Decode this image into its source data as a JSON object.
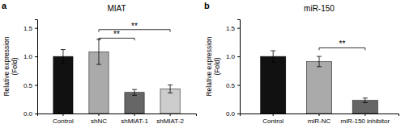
{
  "chart_data": [
    {
      "type": "bar",
      "title": "MIAT",
      "panel_label": "a",
      "categories": [
        "Control",
        "shNC",
        "shMIAT-1",
        "shMIAT-2"
      ],
      "values": [
        1.0,
        1.08,
        0.37,
        0.43
      ],
      "errors": [
        0.12,
        0.22,
        0.05,
        0.07
      ],
      "colors": [
        "#111111",
        "#aaaaaa",
        "#666666",
        "#cccccc"
      ],
      "ylabel": "Relative expression\n(Fold)",
      "ylim": [
        0,
        1.65
      ],
      "yticks": [
        {
          "value": 0,
          "label": "0.0"
        },
        0.5,
        {
          "value": 1,
          "label": "1.0"
        },
        1.5
      ],
      "annotations": [
        {
          "text": "**",
          "from": "shNC",
          "to": "shMIAT-1",
          "y": 1.32
        },
        {
          "text": "**",
          "from": "shNC",
          "to": "shMIAT-2",
          "y": 1.47
        }
      ]
    },
    {
      "type": "bar",
      "title": "miR-150",
      "panel_label": "b",
      "categories": [
        "Control",
        "miR-NC",
        "miR-150 inhibitor"
      ],
      "values": [
        1.0,
        0.91,
        0.23
      ],
      "errors": [
        0.1,
        0.09,
        0.04
      ],
      "colors": [
        "#111111",
        "#aaaaaa",
        "#666666"
      ],
      "ylabel": "Relative expression\n(Fold)",
      "ylim": [
        0,
        1.65
      ],
      "yticks": [
        {
          "value": 0,
          "label": "0.0"
        },
        0.5,
        {
          "value": 1,
          "label": "1.0"
        },
        1.5
      ],
      "annotations": [
        {
          "text": "**",
          "from": "miR-NC",
          "to": "miR-150 inhibitor",
          "y": 1.15
        }
      ]
    }
  ]
}
